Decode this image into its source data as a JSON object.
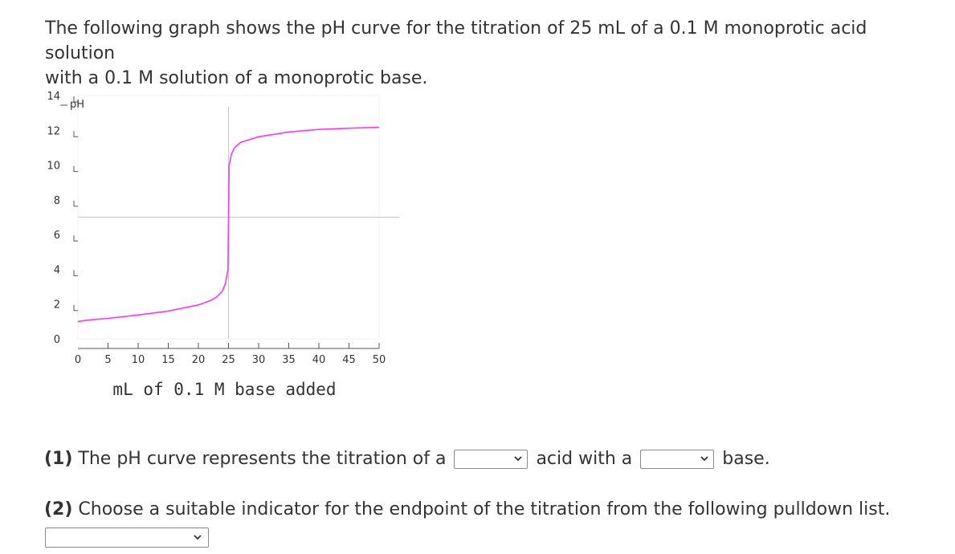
{
  "intro": {
    "line1": "The following graph shows the pH curve for the titration of 25 mL of a 0.1 M monoprotic acid solution",
    "line2": "with a 0.1 M solution of a monoprotic base."
  },
  "chart_data": {
    "type": "line",
    "title": "",
    "ylabel": "pH",
    "xlabel": "mL of 0.1 M base added",
    "xlim": [
      0,
      50
    ],
    "ylim": [
      0,
      14
    ],
    "x_ticks": [
      "0",
      "5",
      "10",
      "15",
      "20",
      "25",
      "30",
      "35",
      "40",
      "45",
      "50"
    ],
    "y_ticks": [
      "0",
      "2",
      "4",
      "6",
      "8",
      "10",
      "12",
      "14"
    ],
    "reference_lines": {
      "vertical_x": 25,
      "horizontal_y": 7
    },
    "series": [
      {
        "color": "#ff33ff",
        "x": [
          0,
          2,
          5,
          10,
          15,
          20,
          22,
          23,
          24,
          24.5,
          24.9,
          25,
          25.1,
          25.5,
          26,
          27,
          30,
          35,
          40,
          45,
          50
        ],
        "y": [
          1.0,
          1.09,
          1.18,
          1.37,
          1.6,
          1.95,
          2.2,
          2.4,
          2.75,
          3.2,
          4.0,
          7.0,
          10.0,
          10.65,
          11.0,
          11.3,
          11.63,
          11.9,
          12.05,
          12.12,
          12.17
        ]
      }
    ],
    "grid": false
  },
  "questions": {
    "q1_number": "(1)",
    "q1_text_a": "The pH curve represents the titration of a",
    "q1_text_b": "acid with a",
    "q1_text_c": "base.",
    "q1_select1_value": "",
    "q1_select2_value": "",
    "q2_number": "(2)",
    "q2_text": "Choose a suitable indicator for the endpoint of the titration from the following pulldown list.",
    "q2_select_value": ""
  },
  "icons": {
    "dropdown": "chevron-down-icon"
  }
}
